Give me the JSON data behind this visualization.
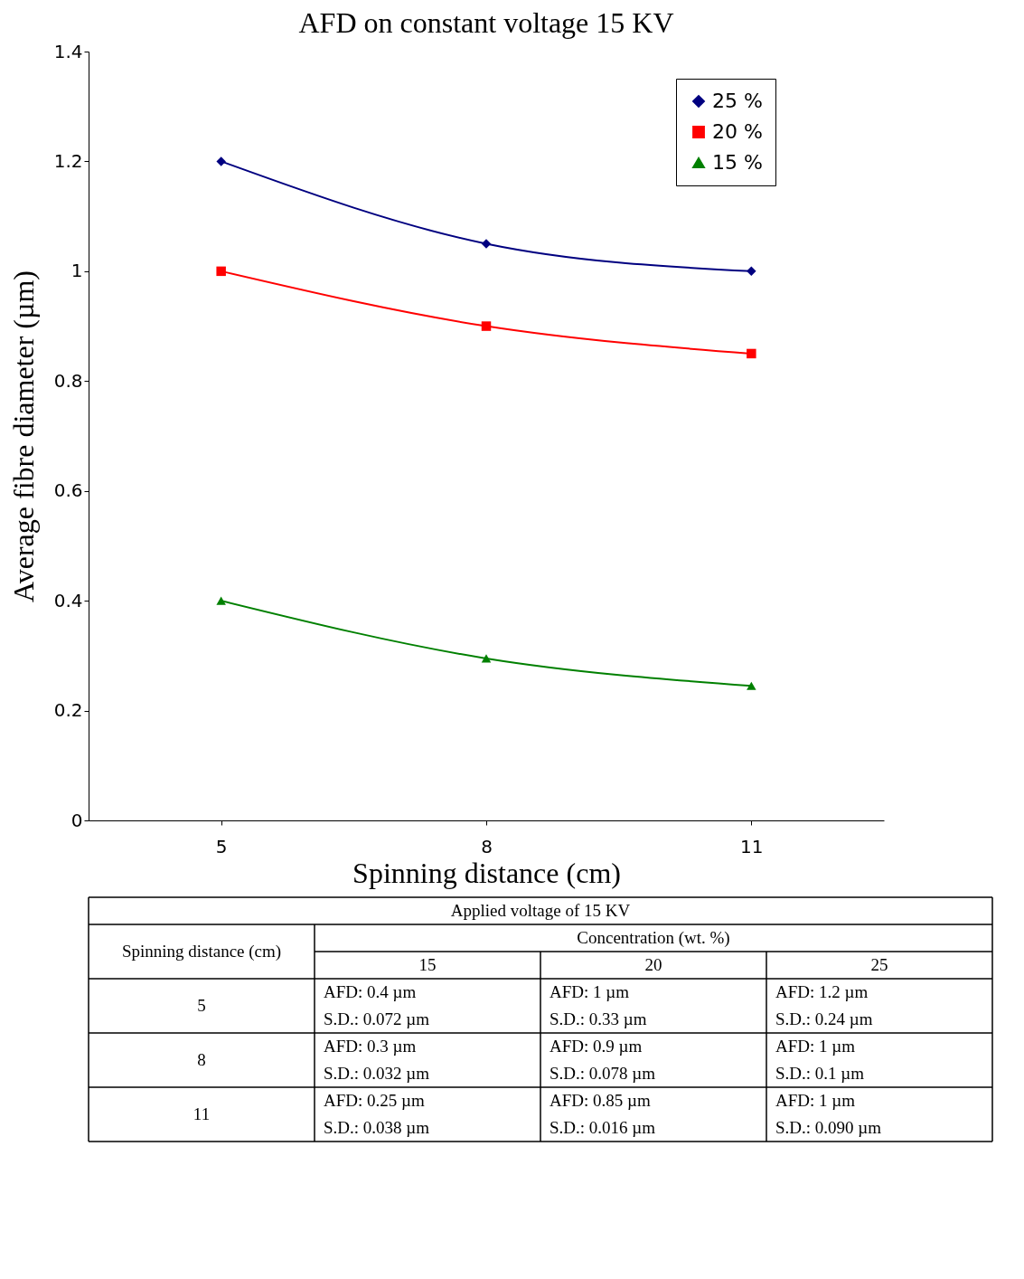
{
  "chart_data": {
    "type": "line",
    "title": "AFD on constant voltage 15 KV",
    "xlabel": "Spinning distance (cm)",
    "ylabel": "Average fibre diameter (µm)",
    "categories": [
      "5",
      "8",
      "11"
    ],
    "series": [
      {
        "name": "25 %",
        "color": "#000080",
        "marker": "diamond",
        "values": [
          1.2,
          1.05,
          1.0
        ]
      },
      {
        "name": "20 %",
        "color": "#ff0000",
        "marker": "square",
        "values": [
          1.0,
          0.9,
          0.85
        ]
      },
      {
        "name": "15 %",
        "color": "#008000",
        "marker": "triangle",
        "values": [
          0.4,
          0.295,
          0.245
        ]
      }
    ],
    "ylim": [
      0,
      1.4
    ],
    "yticks": [
      0,
      0.2,
      0.4,
      0.6,
      0.8,
      1,
      1.2,
      1.4
    ],
    "grid": false,
    "legend": "top right",
    "annotations": [
      "Applied voltage of 15 KV",
      "Spinning distance (cm)",
      "Concentration (wt. %)",
      "15",
      "20",
      "25",
      "5",
      "AFD: 0.4 µm",
      "S.D.: 0.072 µm",
      "AFD: 1 µm",
      "S.D.: 0.33 µm",
      "AFD: 1.2 µm",
      "S.D.: 0.24 µm",
      "8",
      "AFD: 0.3 µm",
      "S.D.: 0.032 µm",
      "AFD: 0.9 µm",
      "S.D.: 0.078 µm",
      "AFD: 1 µm",
      "S.D.: 0.1 µm",
      "11",
      "AFD: 0.25 µm",
      "S.D.: 0.038 µm",
      "AFD: 0.85 µm",
      "S.D.: 0.016 µm",
      "AFD: 1 µm",
      "S.D.: 0.090 µm"
    ]
  }
}
